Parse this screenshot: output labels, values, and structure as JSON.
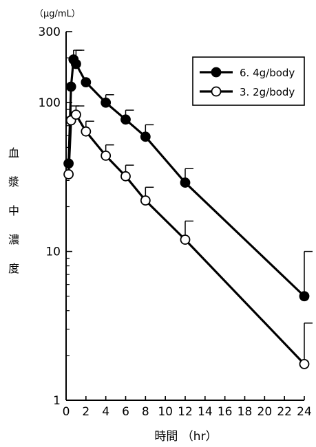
{
  "chart_data": {
    "type": "line",
    "title": "",
    "y_unit": "（μg/mL）",
    "ylabel_chars": [
      "血",
      "漿",
      "中",
      "濃",
      "度"
    ],
    "xlabel": "時間 （hr）",
    "y_scale": "log",
    "ylim": [
      1,
      300
    ],
    "xlim": [
      0,
      24
    ],
    "x_ticks": [
      0,
      2,
      4,
      6,
      8,
      10,
      12,
      14,
      16,
      18,
      20,
      22,
      24
    ],
    "x_tick_labels": [
      "0",
      "2",
      "4",
      "6",
      "8",
      "10",
      "12",
      "14",
      "16",
      "18",
      "20",
      "22",
      "24"
    ],
    "y_ticks": [
      1,
      10,
      100,
      300
    ],
    "y_tick_labels": [
      "1",
      "10",
      "100",
      "300"
    ],
    "grid": false,
    "legend_position": "top-right",
    "series": [
      {
        "name": "6. 4g/body",
        "marker": "filled-circle",
        "x": [
          0.25,
          0.5,
          0.75,
          1,
          2,
          4,
          6,
          8,
          12,
          24
        ],
        "y": [
          39,
          128,
          195,
          182,
          137,
          100,
          77,
          59,
          29,
          5
        ],
        "error_upper": [
          null,
          null,
          225,
          225,
          null,
          113,
          89,
          71,
          36,
          10
        ]
      },
      {
        "name": "3. 2g/body",
        "marker": "open-circle",
        "x": [
          0.25,
          0.5,
          1,
          2,
          4,
          6,
          8,
          12,
          24
        ],
        "y": [
          33,
          76,
          83,
          64,
          44,
          32,
          22,
          12,
          1.75
        ],
        "error_upper": [
          null,
          95,
          95,
          75,
          52,
          38,
          27,
          16,
          3.3
        ]
      }
    ]
  }
}
